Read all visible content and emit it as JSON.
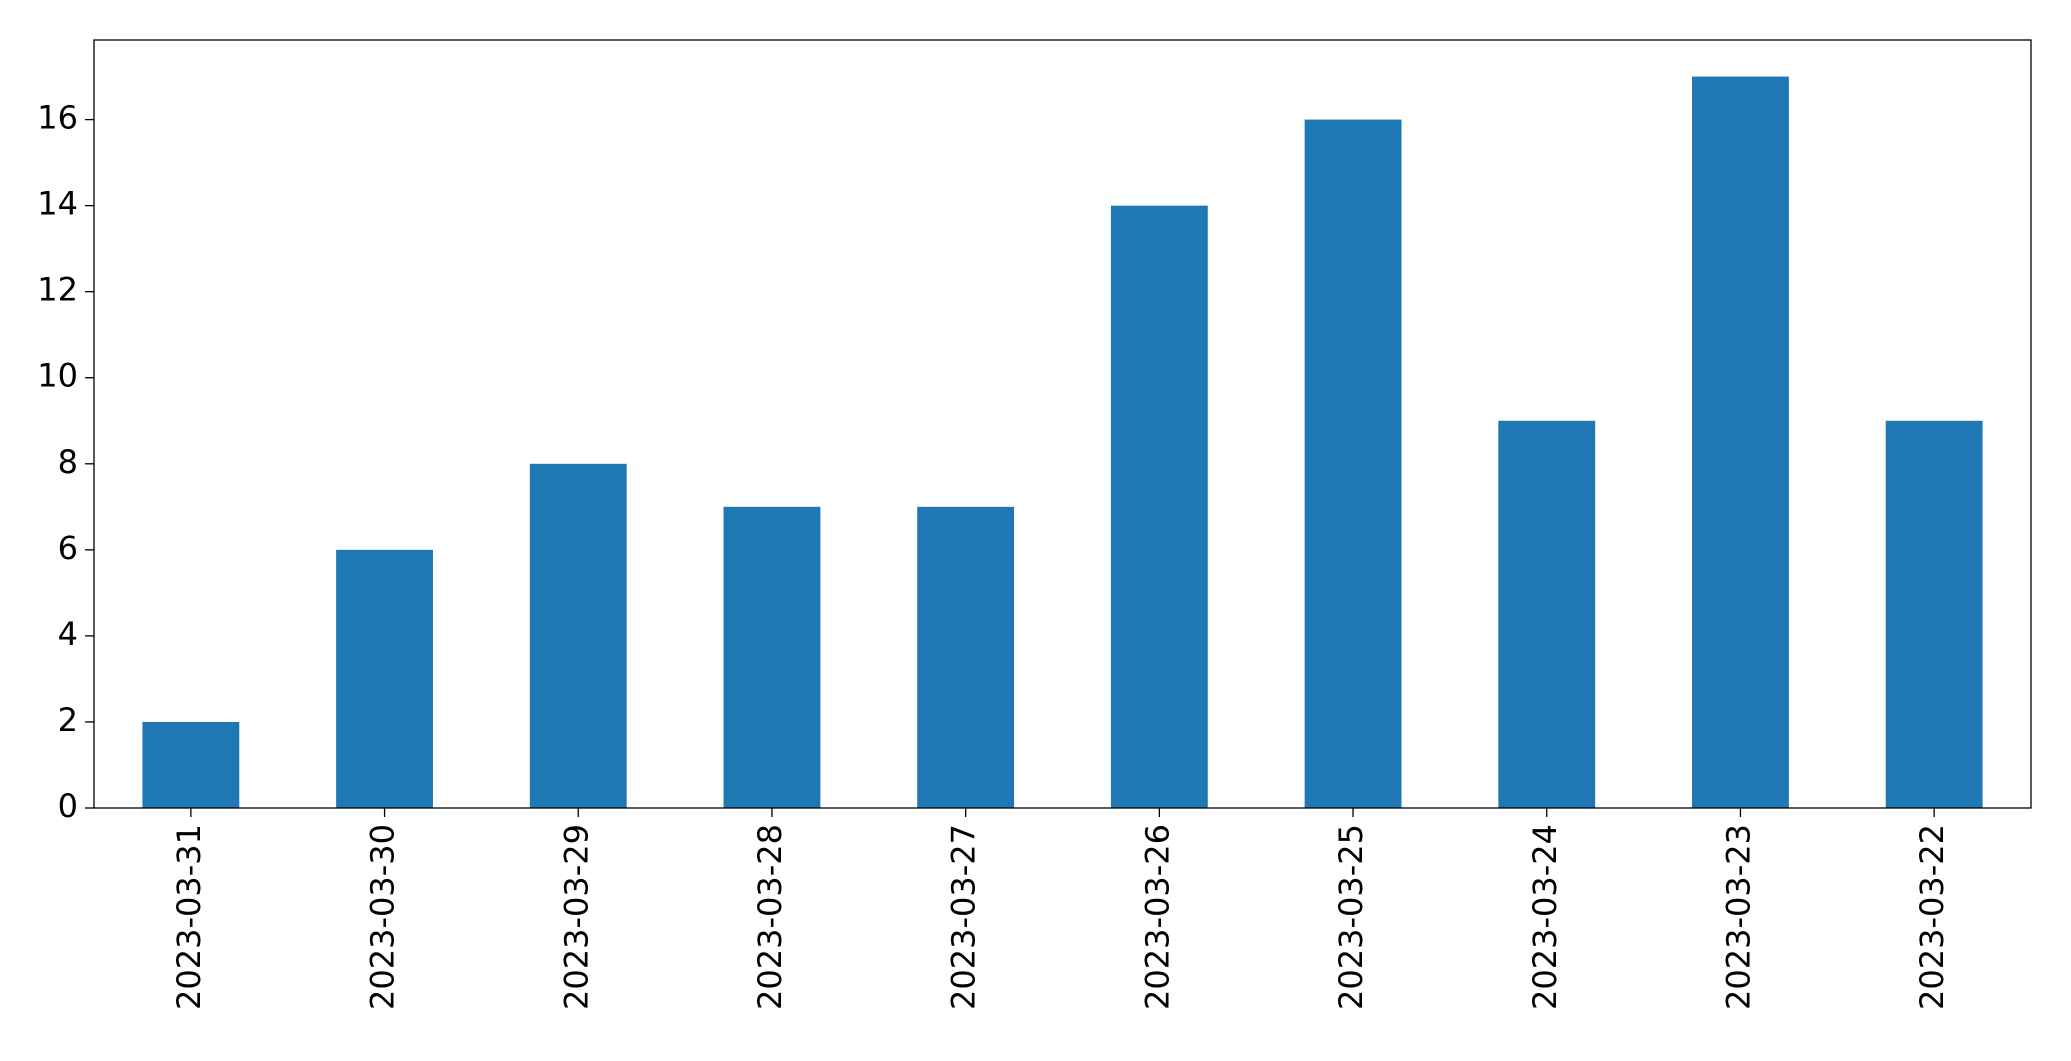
{
  "chart_data": {
    "type": "bar",
    "categories": [
      "2023-03-31",
      "2023-03-30",
      "2023-03-29",
      "2023-03-28",
      "2023-03-27",
      "2023-03-26",
      "2023-03-25",
      "2023-03-24",
      "2023-03-23",
      "2023-03-22"
    ],
    "values": [
      2,
      6,
      8,
      7,
      7,
      14,
      16,
      9,
      17,
      9
    ],
    "color": "#1f77b4",
    "ylim": [
      0,
      17.85
    ],
    "yticks": [
      0,
      2,
      4,
      6,
      8,
      10,
      12,
      14,
      16
    ],
    "grid": false
  }
}
